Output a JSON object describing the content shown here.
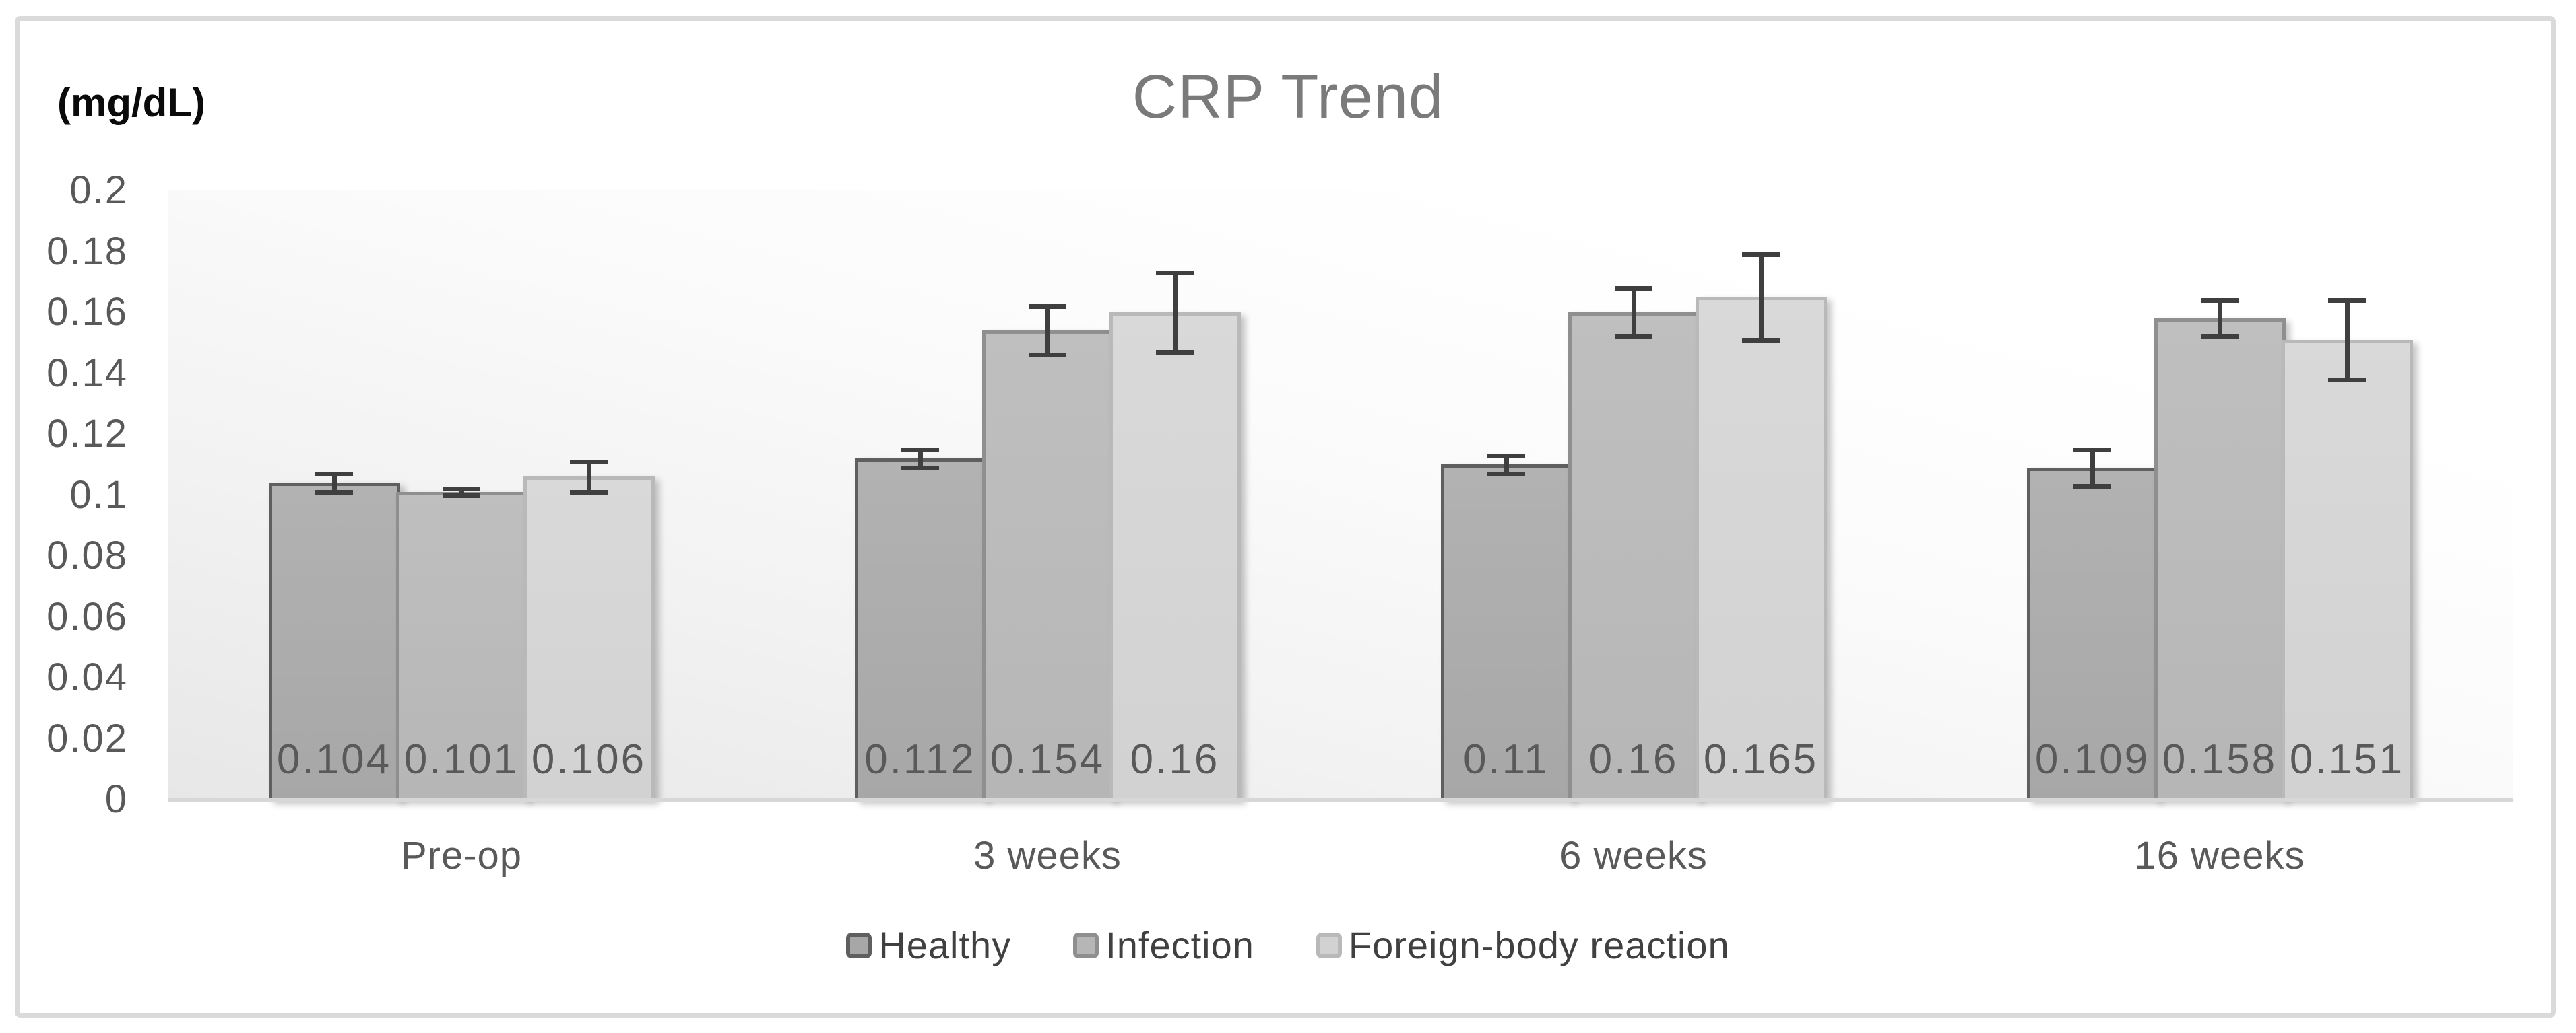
{
  "window": {
    "background": "#ffffff",
    "frame_border_color": "#dadada"
  },
  "chart_data": {
    "type": "bar",
    "title": "CRP Trend",
    "ylabel": "(mg/dL)",
    "xlabel": "",
    "categories": [
      "Pre-op",
      "3 weeks",
      "6 weeks",
      "16 weeks"
    ],
    "series": [
      {
        "name": "Healthy",
        "fill": "#a7a7a7",
        "fill_top": "#b2b2b2",
        "border": "#5f5f5f",
        "values": [
          0.104,
          0.112,
          0.11,
          0.109
        ],
        "errors": [
          0.003,
          0.003,
          0.003,
          0.006
        ]
      },
      {
        "name": "Infection",
        "fill": "#b6b6b6",
        "fill_top": "#bfbfbf",
        "border": "#8f8f8f",
        "values": [
          0.101,
          0.154,
          0.16,
          0.158
        ],
        "errors": [
          0.001,
          0.008,
          0.008,
          0.006
        ]
      },
      {
        "name": "Foreign-body reaction",
        "fill": "#d2d2d2",
        "fill_top": "#d9d9d9",
        "border": "#b9b9b9",
        "values": [
          0.106,
          0.16,
          0.165,
          0.151
        ],
        "errors": [
          0.005,
          0.013,
          0.014,
          0.013
        ]
      }
    ],
    "data_labels": [
      [
        "0.104",
        "0.112",
        "0.11",
        "0.109"
      ],
      [
        "0.101",
        "0.154",
        "0.16",
        "0.158"
      ],
      [
        "0.106",
        "0.16",
        "0.165",
        "0.151"
      ]
    ],
    "ylim": [
      0,
      0.2
    ],
    "ytick_step": 0.02,
    "yticks": [
      "0",
      "0.02",
      "0.04",
      "0.06",
      "0.08",
      "0.1",
      "0.12",
      "0.14",
      "0.16",
      "0.18",
      "0.2"
    ],
    "grid": false,
    "legend_position": "bottom",
    "error_bars": true,
    "colors": {
      "title": "#7a7a7a",
      "axis_text": "#595959",
      "data_label": "#595959",
      "legend_text": "#404040",
      "error_bar": "#3f3f3f",
      "axis_line": "#d7d7d7"
    }
  }
}
